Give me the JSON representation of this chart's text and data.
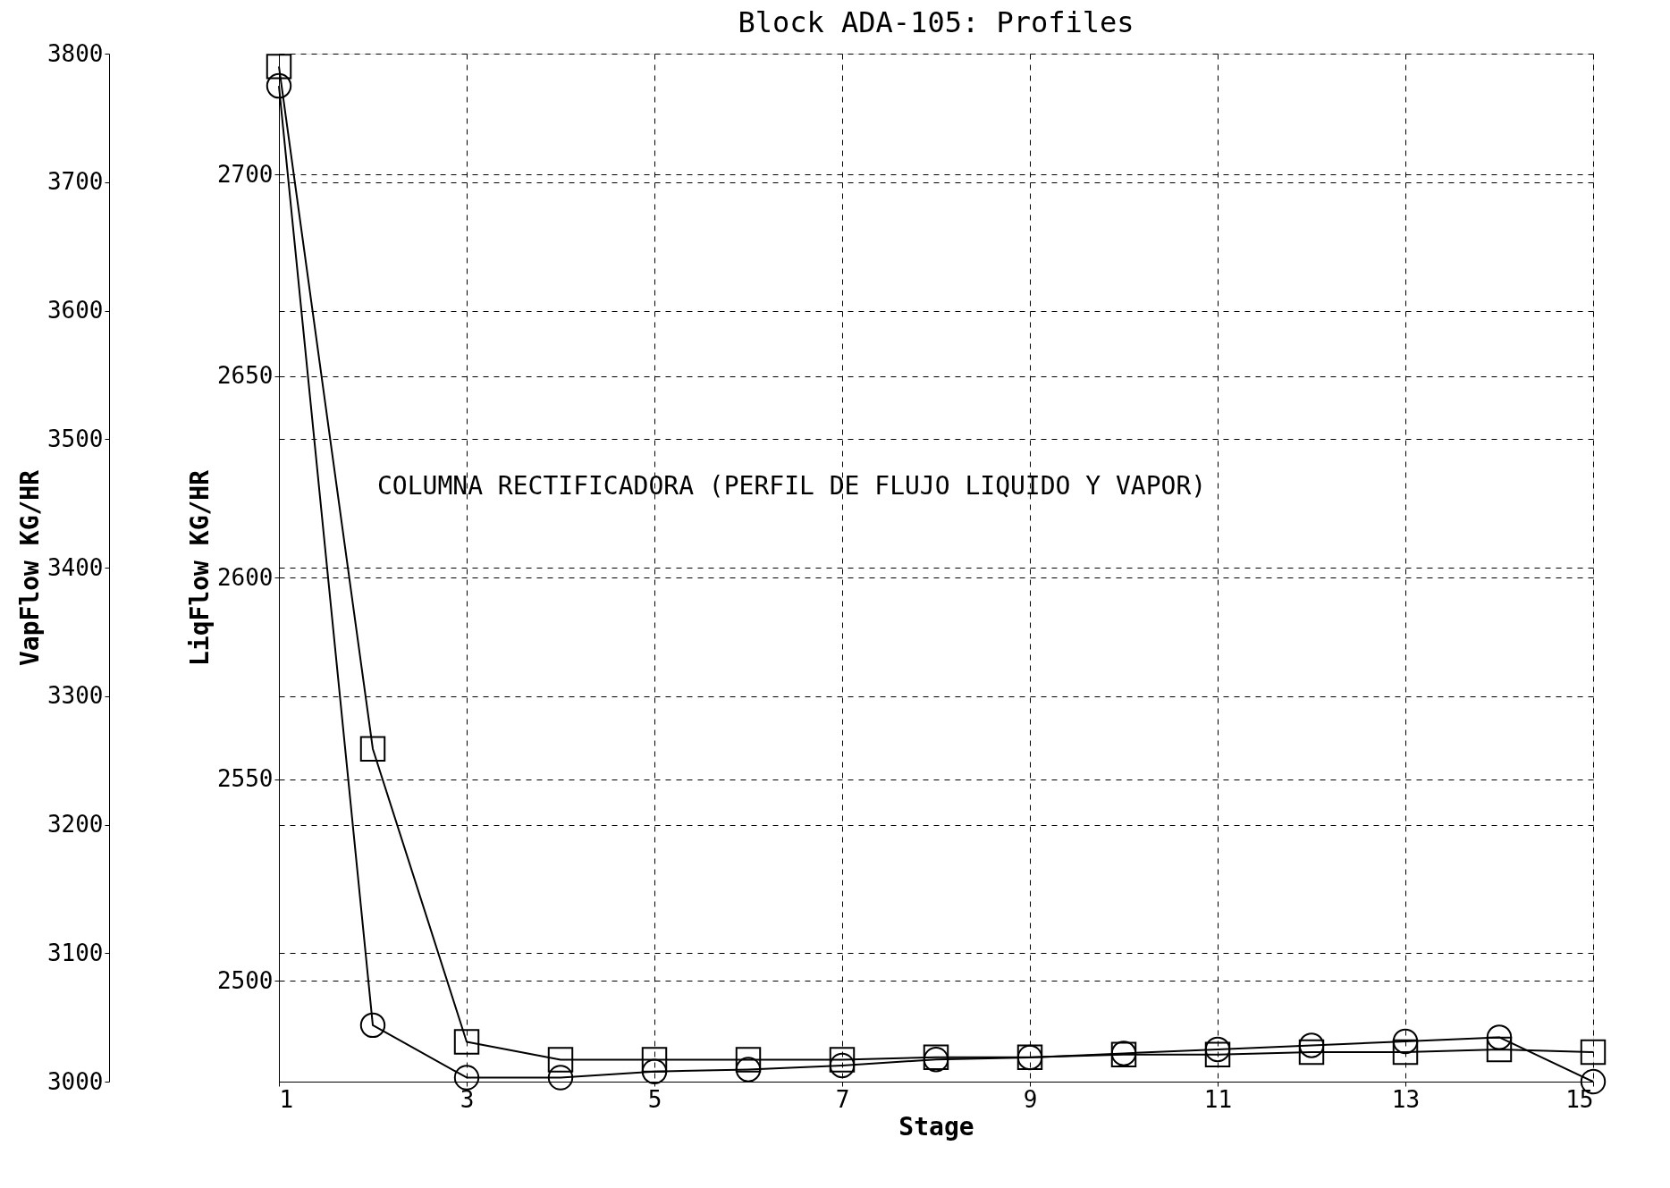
{
  "chart_data": {
    "type": "line",
    "title": "Block ADA-105: Profiles",
    "xlabel": "Stage",
    "ylabel": "LiqFlow KG/HR",
    "y2label": "VapFlow KG/HR",
    "x": [
      1,
      2,
      3,
      4,
      5,
      6,
      7,
      8,
      9,
      10,
      11,
      12,
      13,
      14,
      15
    ],
    "xlim": [
      1,
      15
    ],
    "xticks": [
      1,
      3,
      5,
      7,
      9,
      11,
      13,
      15
    ],
    "ylim": [
      2475,
      2730
    ],
    "yticks": [
      2500,
      2550,
      2600,
      2650,
      2700
    ],
    "y2lim": [
      3000,
      3800
    ],
    "y2ticks": [
      3000,
      3100,
      3200,
      3300,
      3400,
      3500,
      3600,
      3700,
      3800
    ],
    "series": [
      {
        "color": "#000000",
        "marker": "circle",
        "values": [
          2722,
          2489,
          2476,
          2476,
          2477.5,
          2478,
          2479,
          2480.5,
          2481,
          2482,
          2483,
          2484,
          2485,
          2486,
          2475
        ]
      },
      {
        "color": "#000000",
        "marker": "square",
        "axis": "y2",
        "values": [
          3790,
          3259,
          3031,
          3017,
          3017,
          3017,
          3017,
          3019,
          3019,
          3021,
          3021,
          3023,
          3023,
          3025,
          3023
        ]
      }
    ],
    "grid": true,
    "line_style": "solid",
    "annotations": [
      "COLUMNA RECTIFICADORA (PERFIL DE FLUJO LIQUIDO Y VAPOR)"
    ]
  }
}
